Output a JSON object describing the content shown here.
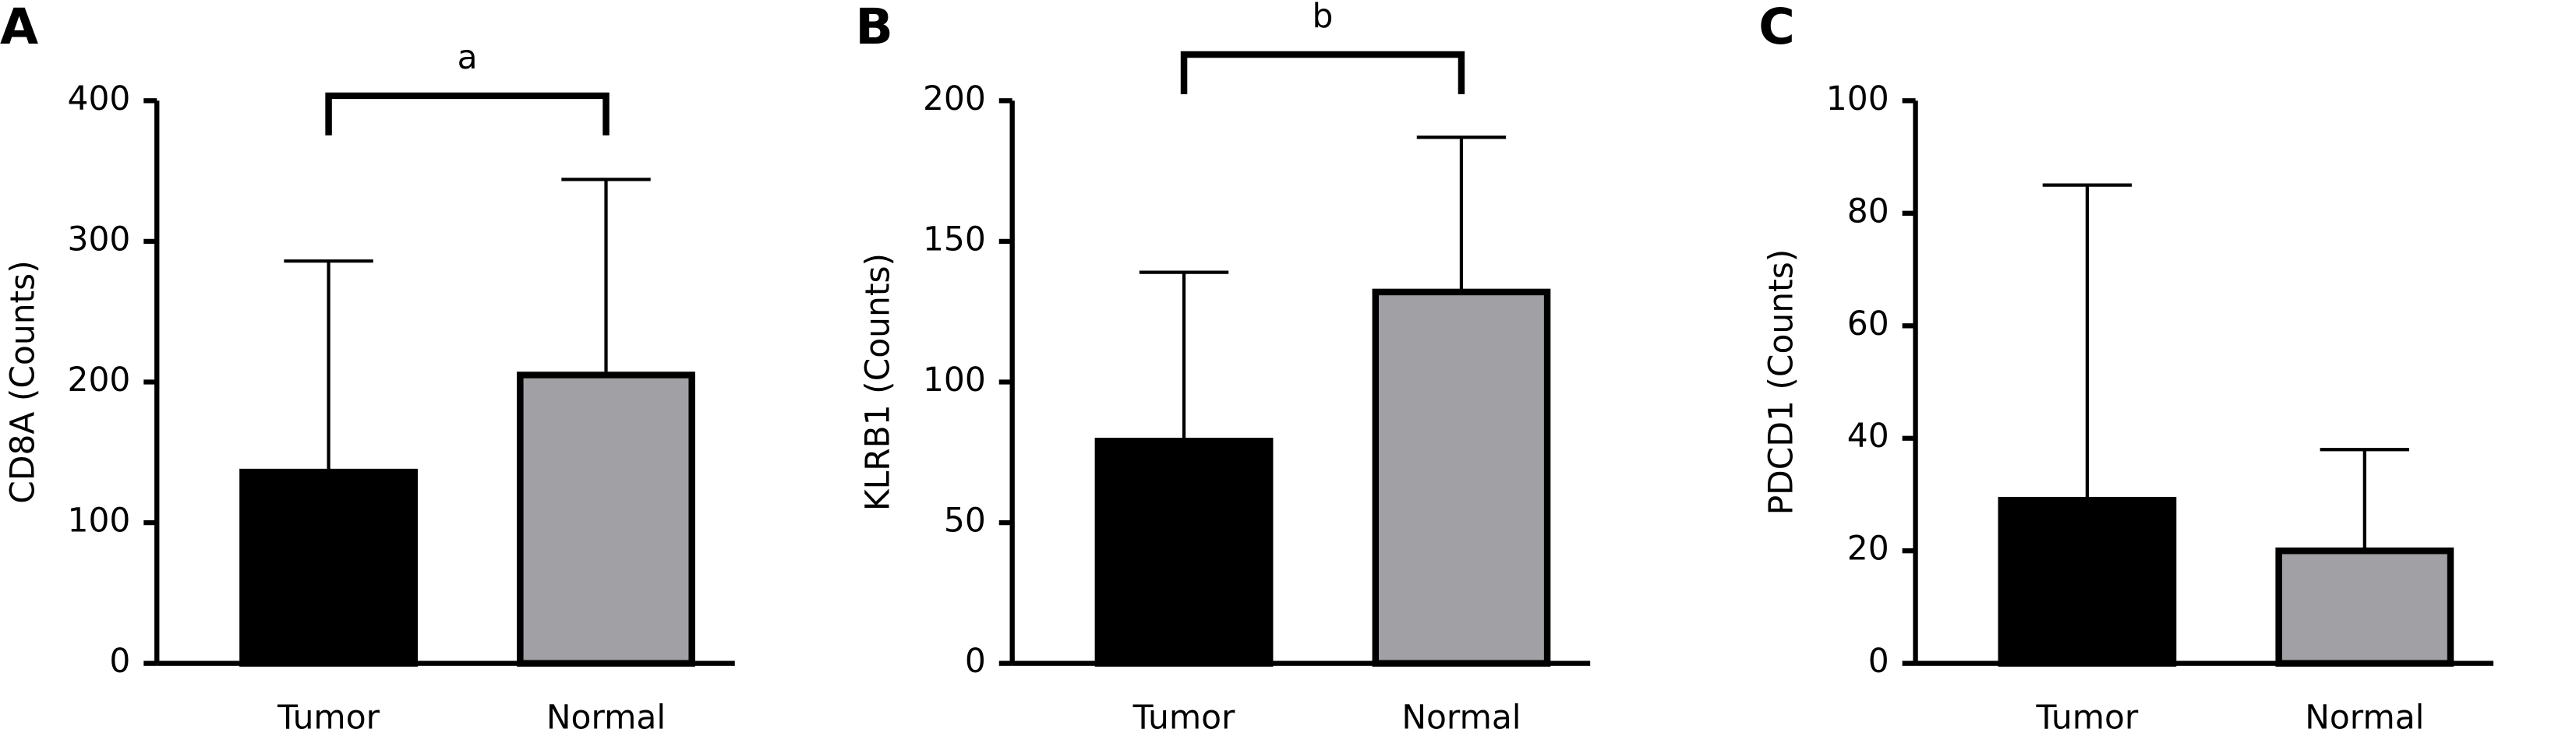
{
  "chart_data": [
    {
      "type": "bar",
      "panel": "A",
      "ylabel": "CD8A (Counts)",
      "categories": [
        "Tumor",
        "Normal"
      ],
      "values": [
        136,
        205
      ],
      "errors": [
        150,
        139
      ],
      "colors": [
        "#000000",
        "#a0a0a5"
      ],
      "ylim": [
        0,
        400
      ],
      "yticks": [
        0,
        100,
        200,
        300,
        400
      ],
      "annotation": "a"
    },
    {
      "type": "bar",
      "panel": "B",
      "ylabel": "KLRB1 (Counts)",
      "categories": [
        "Tumor",
        "Normal"
      ],
      "values": [
        79,
        132
      ],
      "errors": [
        60,
        55
      ],
      "colors": [
        "#000000",
        "#a0a0a5"
      ],
      "ylim": [
        0,
        200
      ],
      "yticks": [
        0,
        50,
        100,
        150,
        200
      ],
      "annotation": "b"
    },
    {
      "type": "bar",
      "panel": "C",
      "ylabel": "PDCD1 (Counts)",
      "categories": [
        "Tumor",
        "Normal"
      ],
      "values": [
        29,
        20
      ],
      "errors": [
        56,
        18
      ],
      "colors": [
        "#000000",
        "#a0a0a5"
      ],
      "ylim": [
        0,
        100
      ],
      "yticks": [
        0,
        20,
        40,
        60,
        80,
        100
      ]
    }
  ]
}
